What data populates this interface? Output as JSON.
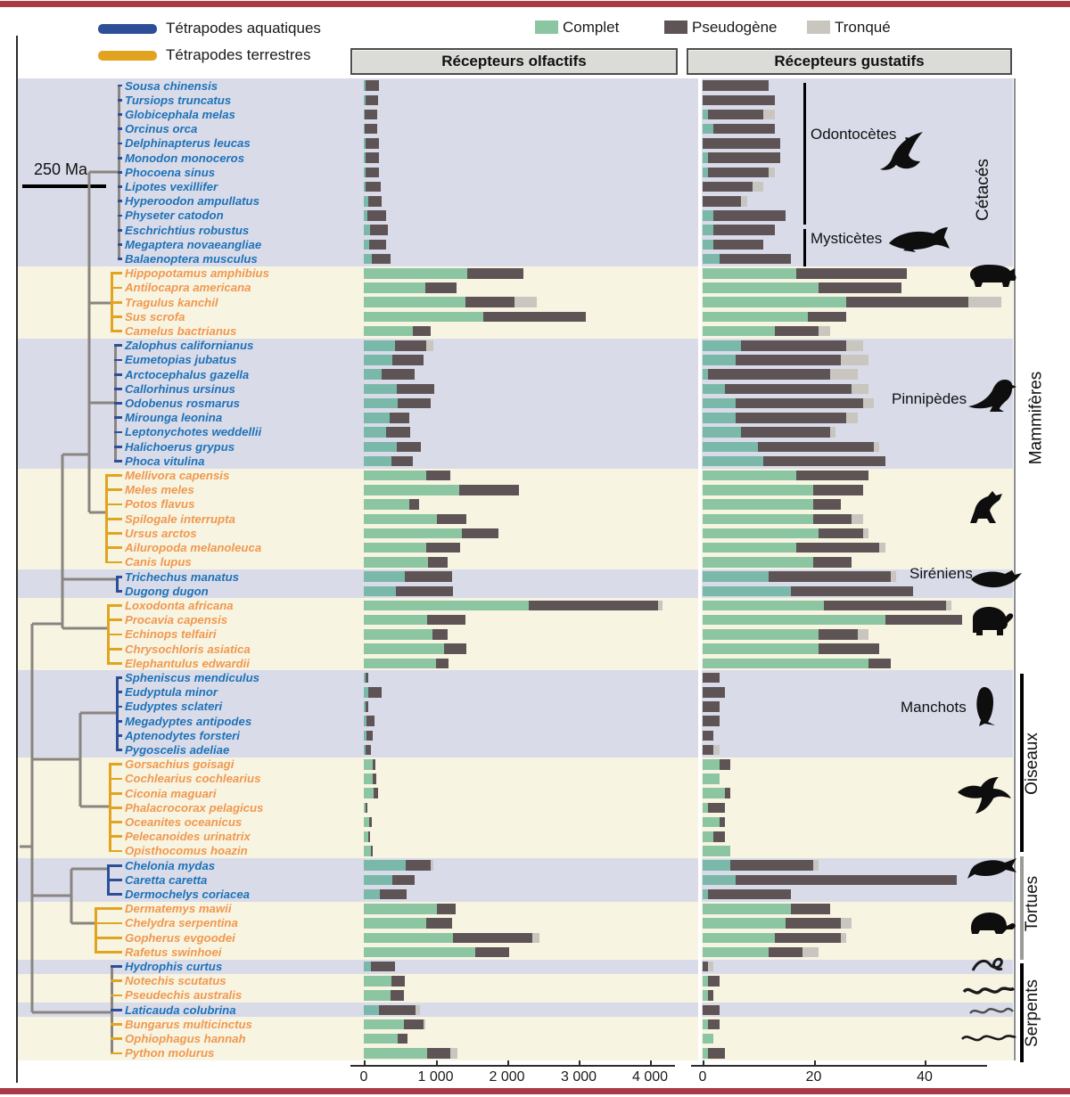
{
  "legend": {
    "habitats": [
      {
        "label": "Tétrapodes aquatiques",
        "color": "#2d4f97"
      },
      {
        "label": "Tétrapodes terrestres",
        "color": "#e2a41f"
      }
    ],
    "categories": [
      {
        "label": "Complet",
        "color": "#8cc5a1"
      },
      {
        "label": "Pseudogène",
        "color": "#5e5456"
      },
      {
        "label": "Tronqué",
        "color": "#c9c6bf"
      }
    ]
  },
  "panels": {
    "olfactory": "Récepteurs olfactifs",
    "gustatory": "Récepteurs gustatifs"
  },
  "scale_bar": "250 Ma",
  "annotations": {
    "odontocetes": "Odontocètes",
    "mysticetes": "Mysticètes",
    "pinnipeds": "Pinnipèdes",
    "sirenians": "Siréniens",
    "penguins": "Manchots"
  },
  "group_labels": [
    "Cétacés",
    "Mammifères",
    "Oiseaux",
    "Tortues",
    "Serpents"
  ],
  "colors": {
    "aquatic": "#2d4f97",
    "terrestrial": "#e2a41f",
    "text_aquatic": "#1d72b8",
    "text_terrestrial": "#f0984e",
    "band_aquatic": "#d9dbe9",
    "band_terrestrial": "#f8f4e2",
    "complete": "#8cc5a1",
    "complete_aquatic_band": "#7ab9a9",
    "pseudogene": "#5e5456",
    "truncated": "#c9c6bf",
    "maroon": "#a93a46",
    "tree_gray": "#8a8580"
  },
  "chart_data": {
    "type": "stacked-bar",
    "segment_order": [
      "complet",
      "pseudogene",
      "tronque"
    ],
    "axes": {
      "olfactory": {
        "ticks": [
          "0",
          "1 000",
          "2 000",
          "3 000",
          "4 000"
        ],
        "range": [
          0,
          4400
        ]
      },
      "gustatory": {
        "ticks": [
          "0",
          "20",
          "40"
        ],
        "range": [
          0,
          55
        ]
      }
    },
    "bands": [
      {
        "from": 0,
        "to": 12,
        "tone": "aquatic"
      },
      {
        "from": 13,
        "to": 17,
        "tone": "terrestrial"
      },
      {
        "from": 18,
        "to": 26,
        "tone": "aquatic"
      },
      {
        "from": 27,
        "to": 33,
        "tone": "terrestrial"
      },
      {
        "from": 34,
        "to": 35,
        "tone": "aquatic"
      },
      {
        "from": 36,
        "to": 40,
        "tone": "terrestrial"
      },
      {
        "from": 41,
        "to": 46,
        "tone": "aquatic"
      },
      {
        "from": 47,
        "to": 53,
        "tone": "terrestrial"
      },
      {
        "from": 54,
        "to": 56,
        "tone": "aquatic"
      },
      {
        "from": 57,
        "to": 60,
        "tone": "terrestrial"
      },
      {
        "from": 61,
        "to": 61,
        "tone": "aquatic"
      },
      {
        "from": 62,
        "to": 63,
        "tone": "terrestrial"
      },
      {
        "from": 64,
        "to": 64,
        "tone": "aquatic"
      },
      {
        "from": 65,
        "to": 67,
        "tone": "terrestrial"
      }
    ],
    "species": [
      {
        "name": "Sousa chinensis",
        "habitat": "aquatic",
        "olfactory": [
          20,
          190,
          0
        ],
        "gustatory": [
          0,
          12,
          0
        ]
      },
      {
        "name": "Tursiops truncatus",
        "habitat": "aquatic",
        "olfactory": [
          20,
          185,
          0
        ],
        "gustatory": [
          0,
          13,
          0
        ]
      },
      {
        "name": "Globicephala melas",
        "habitat": "aquatic",
        "olfactory": [
          15,
          175,
          0
        ],
        "gustatory": [
          1,
          10,
          2
        ]
      },
      {
        "name": "Orcinus orca",
        "habitat": "aquatic",
        "olfactory": [
          15,
          175,
          0
        ],
        "gustatory": [
          2,
          11,
          0
        ]
      },
      {
        "name": "Delphinapterus leucas",
        "habitat": "aquatic",
        "olfactory": [
          20,
          190,
          0
        ],
        "gustatory": [
          0,
          14,
          0
        ]
      },
      {
        "name": "Monodon monoceros",
        "habitat": "aquatic",
        "olfactory": [
          20,
          190,
          0
        ],
        "gustatory": [
          1,
          13,
          0
        ]
      },
      {
        "name": "Phocoena sinus",
        "habitat": "aquatic",
        "olfactory": [
          25,
          185,
          0
        ],
        "gustatory": [
          1,
          11,
          1
        ]
      },
      {
        "name": "Lipotes vexillifer",
        "habitat": "aquatic",
        "olfactory": [
          30,
          205,
          0
        ],
        "gustatory": [
          0,
          9,
          2
        ]
      },
      {
        "name": "Hyperoodon ampullatus",
        "habitat": "aquatic",
        "olfactory": [
          60,
          195,
          0
        ],
        "gustatory": [
          0,
          7,
          1
        ]
      },
      {
        "name": "Physeter catodon",
        "habitat": "aquatic",
        "olfactory": [
          50,
          265,
          0
        ],
        "gustatory": [
          2,
          13,
          0
        ]
      },
      {
        "name": "Eschrichtius robustus",
        "habitat": "aquatic",
        "olfactory": [
          90,
          250,
          0
        ],
        "gustatory": [
          2,
          11,
          0
        ]
      },
      {
        "name": "Megaptera novaeangliae",
        "habitat": "aquatic",
        "olfactory": [
          70,
          240,
          0
        ],
        "gustatory": [
          2,
          9,
          0
        ]
      },
      {
        "name": "Balaenoptera musculus",
        "habitat": "aquatic",
        "olfactory": [
          110,
          260,
          0
        ],
        "gustatory": [
          3,
          13,
          0
        ]
      },
      {
        "name": "Hippopotamus amphibius",
        "habitat": "terrestrial",
        "olfactory": [
          1450,
          790,
          0
        ],
        "gustatory": [
          17,
          20,
          0
        ]
      },
      {
        "name": "Antilocapra americana",
        "habitat": "terrestrial",
        "olfactory": [
          860,
          440,
          0
        ],
        "gustatory": [
          21,
          15,
          0
        ]
      },
      {
        "name": "Tragulus kanchil",
        "habitat": "terrestrial",
        "olfactory": [
          1420,
          690,
          310
        ],
        "gustatory": [
          26,
          22,
          6
        ]
      },
      {
        "name": "Sus scrofa",
        "habitat": "terrestrial",
        "olfactory": [
          1670,
          1440,
          0
        ],
        "gustatory": [
          19,
          7,
          0
        ]
      },
      {
        "name": "Camelus bactrianus",
        "habitat": "terrestrial",
        "olfactory": [
          690,
          250,
          0
        ],
        "gustatory": [
          13,
          8,
          2
        ]
      },
      {
        "name": "Zalophus californianus",
        "habitat": "aquatic",
        "olfactory": [
          440,
          440,
          100
        ],
        "gustatory": [
          7,
          19,
          3
        ]
      },
      {
        "name": "Eumetopias jubatus",
        "habitat": "aquatic",
        "olfactory": [
          400,
          440,
          0
        ],
        "gustatory": [
          6,
          19,
          5
        ]
      },
      {
        "name": "Arctocephalus gazella",
        "habitat": "aquatic",
        "olfactory": [
          250,
          460,
          0
        ],
        "gustatory": [
          1,
          22,
          5
        ]
      },
      {
        "name": "Callorhinus ursinus",
        "habitat": "aquatic",
        "olfactory": [
          460,
          525,
          0
        ],
        "gustatory": [
          4,
          23,
          3
        ]
      },
      {
        "name": "Odobenus rosmarus",
        "habitat": "aquatic",
        "olfactory": [
          480,
          460,
          0
        ],
        "gustatory": [
          6,
          23,
          2
        ]
      },
      {
        "name": "Mirounga leonina",
        "habitat": "aquatic",
        "olfactory": [
          360,
          280,
          0
        ],
        "gustatory": [
          6,
          20,
          2
        ]
      },
      {
        "name": "Leptonychotes weddellii",
        "habitat": "aquatic",
        "olfactory": [
          315,
          335,
          0
        ],
        "gustatory": [
          7,
          16,
          1
        ]
      },
      {
        "name": "Halichoerus grypus",
        "habitat": "aquatic",
        "olfactory": [
          460,
          335,
          0
        ],
        "gustatory": [
          10,
          21,
          1
        ]
      },
      {
        "name": "Phoca vitulina",
        "habitat": "aquatic",
        "olfactory": [
          390,
          300,
          0
        ],
        "gustatory": [
          11,
          22,
          0
        ]
      },
      {
        "name": "Mellivora capensis",
        "habitat": "terrestrial",
        "olfactory": [
          880,
          330,
          0
        ],
        "gustatory": [
          17,
          13,
          0
        ]
      },
      {
        "name": "Meles meles",
        "habitat": "terrestrial",
        "olfactory": [
          1340,
          840,
          0
        ],
        "gustatory": [
          20,
          9,
          0
        ]
      },
      {
        "name": "Potos flavus",
        "habitat": "terrestrial",
        "olfactory": [
          640,
          135,
          0
        ],
        "gustatory": [
          20,
          5,
          0
        ]
      },
      {
        "name": "Spilogale interrupta",
        "habitat": "terrestrial",
        "olfactory": [
          1025,
          415,
          0
        ],
        "gustatory": [
          20,
          7,
          2
        ]
      },
      {
        "name": "Ursus arctos",
        "habitat": "terrestrial",
        "olfactory": [
          1380,
          510,
          0
        ],
        "gustatory": [
          21,
          8,
          1
        ]
      },
      {
        "name": "Ailuropoda melanoleuca",
        "habitat": "terrestrial",
        "olfactory": [
          880,
          470,
          0
        ],
        "gustatory": [
          17,
          15,
          1
        ]
      },
      {
        "name": "Canis lupus",
        "habitat": "terrestrial",
        "olfactory": [
          900,
          275,
          0
        ],
        "gustatory": [
          20,
          7,
          0
        ]
      },
      {
        "name": "Trichechus manatus",
        "habitat": "aquatic",
        "olfactory": [
          575,
          660,
          0
        ],
        "gustatory": [
          12,
          22,
          1
        ]
      },
      {
        "name": "Dugong dugon",
        "habitat": "aquatic",
        "olfactory": [
          450,
          800,
          0
        ],
        "gustatory": [
          16,
          22,
          0
        ]
      },
      {
        "name": "Loxodonta africana",
        "habitat": "terrestrial",
        "olfactory": [
          2315,
          1815,
          60
        ],
        "gustatory": [
          22,
          22,
          1
        ]
      },
      {
        "name": "Procavia capensis",
        "habitat": "terrestrial",
        "olfactory": [
          890,
          530,
          0
        ],
        "gustatory": [
          33,
          14,
          0
        ]
      },
      {
        "name": "Echinops telfairi",
        "habitat": "terrestrial",
        "olfactory": [
          960,
          210,
          0
        ],
        "gustatory": [
          21,
          7,
          2
        ]
      },
      {
        "name": "Chrysochloris asiatica",
        "habitat": "terrestrial",
        "olfactory": [
          1130,
          305,
          0
        ],
        "gustatory": [
          21,
          11,
          0
        ]
      },
      {
        "name": "Elephantulus edwardii",
        "habitat": "terrestrial",
        "olfactory": [
          1015,
          170,
          0
        ],
        "gustatory": [
          30,
          4,
          0
        ]
      },
      {
        "name": "Spheniscus mendiculus",
        "habitat": "aquatic",
        "olfactory": [
          20,
          45,
          0
        ],
        "gustatory": [
          0,
          3,
          0
        ]
      },
      {
        "name": "Eudyptula minor",
        "habitat": "aquatic",
        "olfactory": [
          60,
          190,
          0
        ],
        "gustatory": [
          0,
          4,
          0
        ]
      },
      {
        "name": "Eudyptes sclateri",
        "habitat": "aquatic",
        "olfactory": [
          20,
          45,
          0
        ],
        "gustatory": [
          0,
          3,
          0
        ]
      },
      {
        "name": "Megadyptes antipodes",
        "habitat": "aquatic",
        "olfactory": [
          40,
          110,
          0
        ],
        "gustatory": [
          0,
          3,
          0
        ]
      },
      {
        "name": "Aptenodytes forsteri",
        "habitat": "aquatic",
        "olfactory": [
          40,
          90,
          0
        ],
        "gustatory": [
          0,
          2,
          0
        ]
      },
      {
        "name": "Pygoscelis adeliae",
        "habitat": "aquatic",
        "olfactory": [
          30,
          70,
          0
        ],
        "gustatory": [
          0,
          2,
          1
        ]
      },
      {
        "name": "Gorsachius goisagi",
        "habitat": "terrestrial",
        "olfactory": [
          120,
          40,
          0
        ],
        "gustatory": [
          3,
          2,
          0
        ]
      },
      {
        "name": "Cochlearius cochlearius",
        "habitat": "terrestrial",
        "olfactory": [
          130,
          50,
          0
        ],
        "gustatory": [
          3,
          0,
          0
        ]
      },
      {
        "name": "Ciconia maguari",
        "habitat": "terrestrial",
        "olfactory": [
          140,
          60,
          0
        ],
        "gustatory": [
          4,
          1,
          0
        ]
      },
      {
        "name": "Phalacrocorax pelagicus",
        "habitat": "terrestrial",
        "olfactory": [
          30,
          20,
          0
        ],
        "gustatory": [
          1,
          3,
          0
        ]
      },
      {
        "name": "Oceanites oceanicus",
        "habitat": "terrestrial",
        "olfactory": [
          80,
          35,
          0
        ],
        "gustatory": [
          3,
          1,
          0
        ]
      },
      {
        "name": "Pelecanoides urinatrix",
        "habitat": "terrestrial",
        "olfactory": [
          60,
          30,
          0
        ],
        "gustatory": [
          2,
          2,
          0
        ]
      },
      {
        "name": "Opisthocomus hoazin",
        "habitat": "terrestrial",
        "olfactory": [
          100,
          30,
          0
        ],
        "gustatory": [
          5,
          0,
          0
        ]
      },
      {
        "name": "Chelonia mydas",
        "habitat": "aquatic",
        "olfactory": [
          590,
          350,
          30
        ],
        "gustatory": [
          5,
          15,
          1
        ]
      },
      {
        "name": "Caretta caretta",
        "habitat": "aquatic",
        "olfactory": [
          400,
          315,
          0
        ],
        "gustatory": [
          6,
          40,
          0
        ]
      },
      {
        "name": "Dermochelys coriacea",
        "habitat": "aquatic",
        "olfactory": [
          225,
          375,
          0
        ],
        "gustatory": [
          1,
          15,
          0
        ]
      },
      {
        "name": "Dermatemys mawii",
        "habitat": "terrestrial",
        "olfactory": [
          1025,
          265,
          0
        ],
        "gustatory": [
          16,
          7,
          0
        ]
      },
      {
        "name": "Chelydra serpentina",
        "habitat": "terrestrial",
        "olfactory": [
          880,
          360,
          0
        ],
        "gustatory": [
          15,
          10,
          2
        ]
      },
      {
        "name": "Gopherus evgoodei",
        "habitat": "terrestrial",
        "olfactory": [
          1255,
          1105,
          100
        ],
        "gustatory": [
          13,
          12,
          1
        ]
      },
      {
        "name": "Rafetus swinhoei",
        "habitat": "terrestrial",
        "olfactory": [
          1560,
          475,
          0
        ],
        "gustatory": [
          12,
          6,
          3
        ]
      },
      {
        "name": "Hydrophis curtus",
        "habitat": "aquatic",
        "olfactory": [
          100,
          335,
          0
        ],
        "gustatory": [
          0,
          1,
          1
        ]
      },
      {
        "name": "Notechis scutatus",
        "habitat": "terrestrial",
        "olfactory": [
          390,
          185,
          0
        ],
        "gustatory": [
          1,
          2,
          0
        ]
      },
      {
        "name": "Pseudechis australis",
        "habitat": "terrestrial",
        "olfactory": [
          380,
          185,
          0
        ],
        "gustatory": [
          1,
          1,
          0
        ]
      },
      {
        "name": "Laticauda colubrina",
        "habitat": "aquatic",
        "olfactory": [
          210,
          515,
          60
        ],
        "gustatory": [
          0,
          3,
          0
        ]
      },
      {
        "name": "Bungarus multicinctus",
        "habitat": "terrestrial",
        "olfactory": [
          560,
          280,
          25
        ],
        "gustatory": [
          1,
          2,
          0
        ]
      },
      {
        "name": "Ophiophagus hannah",
        "habitat": "terrestrial",
        "olfactory": [
          475,
          135,
          0
        ],
        "gustatory": [
          2,
          0,
          0
        ]
      },
      {
        "name": "Python molurus",
        "habitat": "terrestrial",
        "olfactory": [
          890,
          325,
          95
        ],
        "gustatory": [
          1,
          3,
          0
        ]
      }
    ]
  }
}
